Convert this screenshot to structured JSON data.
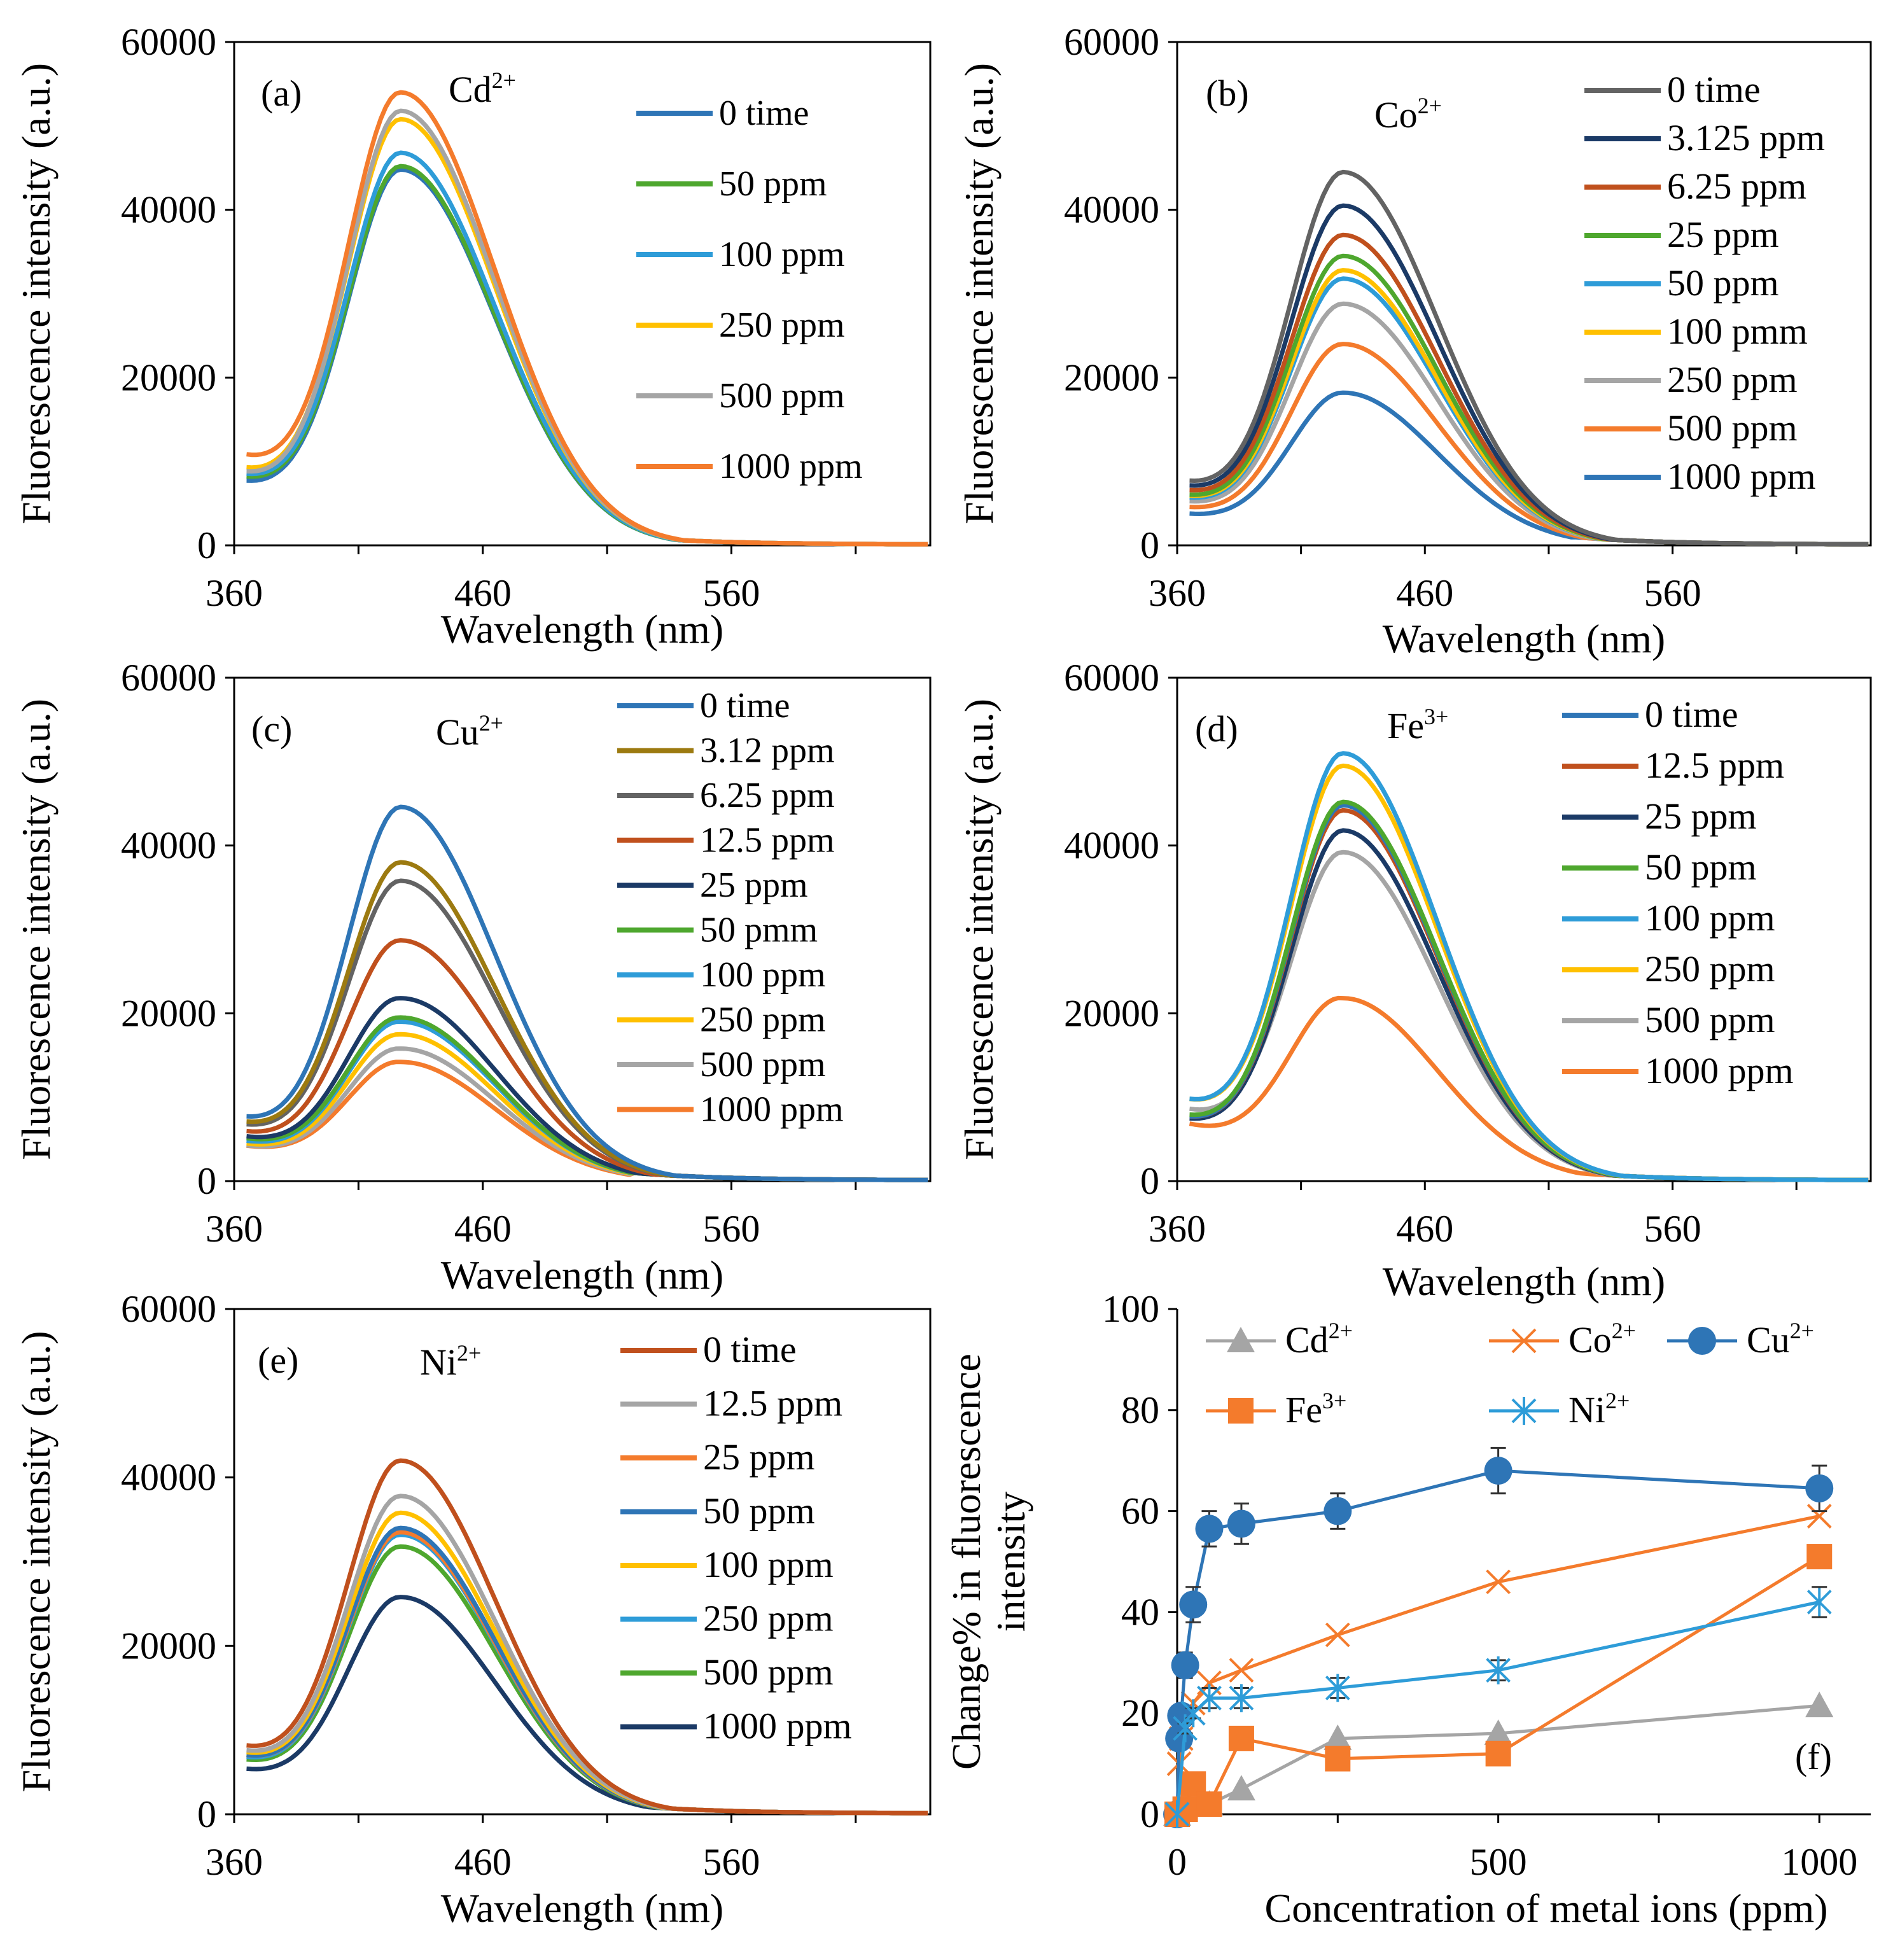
{
  "figure": {
    "x_label": "Wavelength (nm)",
    "y_label": "Fluorescence intensity (a.u.)"
  },
  "colors": {
    "blue": "#2E75B6",
    "green": "#4EA72E",
    "ltblue": "#2E9CD8",
    "yellow": "#FFC000",
    "gray": "#A5A5A5",
    "orange": "#F47B2C",
    "dkgray": "#636363",
    "navy": "#1B3A66",
    "rust": "#C0501D",
    "olive": "#9C7A10"
  },
  "chart_data": [
    {
      "type": "line",
      "panel": "(a)",
      "ion": "Cd",
      "ion_sup": "2+",
      "xlabel": "Wavelength (nm)",
      "ylabel": "Fluorescence intensity (a.u.)",
      "xlim": [
        360,
        640
      ],
      "ylim": [
        0,
        60000
      ],
      "xticks": [
        "360",
        "460",
        "560"
      ],
      "yticks": [
        "0",
        "20000",
        "40000",
        "60000"
      ],
      "legend": "top-right",
      "series": [
        {
          "name": "0 time",
          "color": "#2E75B6",
          "peak": 44800,
          "start": 7000,
          "end": 100
        },
        {
          "name": "50 ppm",
          "color": "#4EA72E",
          "peak": 45200,
          "start": 7500,
          "end": 100
        },
        {
          "name": "100 ppm",
          "color": "#2E9CD8",
          "peak": 46800,
          "start": 7800,
          "end": 100
        },
        {
          "name": "250 ppm",
          "color": "#FFC000",
          "peak": 50800,
          "start": 8500,
          "end": 100
        },
        {
          "name": "500 ppm",
          "color": "#A5A5A5",
          "peak": 51800,
          "start": 8000,
          "end": 100
        },
        {
          "name": "1000 ppm",
          "color": "#F47B2C",
          "peak": 54000,
          "start": 10000,
          "end": 100
        }
      ]
    },
    {
      "type": "line",
      "panel": "(b)",
      "ion": "Co",
      "ion_sup": "2+",
      "xlabel": "Wavelength (nm)",
      "ylabel": "Fluorescence intensity (a.u.)",
      "xlim": [
        360,
        640
      ],
      "ylim": [
        0,
        60000
      ],
      "xticks": [
        "360",
        "460",
        "560"
      ],
      "yticks": [
        "0",
        "20000",
        "40000",
        "60000"
      ],
      "legend": "top-right",
      "series": [
        {
          "name": "0 time",
          "color": "#636363",
          "peak": 44500,
          "start": 7000,
          "end": 100
        },
        {
          "name": "3.125 ppm",
          "color": "#1B3A66",
          "peak": 40500,
          "start": 6500,
          "end": 100
        },
        {
          "name": "6.25 ppm",
          "color": "#C0501D",
          "peak": 37000,
          "start": 6000,
          "end": 100
        },
        {
          "name": "25 ppm",
          "color": "#4EA72E",
          "peak": 34500,
          "start": 5500,
          "end": 100
        },
        {
          "name": "50 ppm",
          "color": "#2E9CD8",
          "peak": 31800,
          "start": 5200,
          "end": 100
        },
        {
          "name": "100 pmm",
          "color": "#FFC000",
          "peak": 32800,
          "start": 5400,
          "end": 100
        },
        {
          "name": "250 ppm",
          "color": "#A5A5A5",
          "peak": 28800,
          "start": 4800,
          "end": 100
        },
        {
          "name": "500 ppm",
          "color": "#F47B2C",
          "peak": 24000,
          "start": 4200,
          "end": 100
        },
        {
          "name": "1000 ppm",
          "color": "#2E75B6",
          "peak": 18200,
          "start": 3500,
          "end": 100
        }
      ]
    },
    {
      "type": "line",
      "panel": "(c)",
      "ion": "Cu",
      "ion_sup": "2+",
      "xlabel": "Wavelength (nm)",
      "ylabel": "Fluorescence intensity (a.u.)",
      "xlim": [
        360,
        640
      ],
      "ylim": [
        0,
        60000
      ],
      "xticks": [
        "360",
        "460",
        "560"
      ],
      "yticks": [
        "0",
        "20000",
        "40000",
        "60000"
      ],
      "legend": "top-right",
      "series": [
        {
          "name": "0 time",
          "color": "#2E75B6",
          "peak": 44600,
          "start": 7000,
          "end": 100
        },
        {
          "name": "3.12 ppm",
          "color": "#9C7A10",
          "peak": 38000,
          "start": 6500,
          "end": 100
        },
        {
          "name": "6.25 ppm",
          "color": "#636363",
          "peak": 35800,
          "start": 6200,
          "end": 100
        },
        {
          "name": "12.5 ppm",
          "color": "#C0501D",
          "peak": 28700,
          "start": 5500,
          "end": 100
        },
        {
          "name": "25 ppm",
          "color": "#1B3A66",
          "peak": 21800,
          "start": 5000,
          "end": 100
        },
        {
          "name": "50 pmm",
          "color": "#4EA72E",
          "peak": 19500,
          "start": 4800,
          "end": 100
        },
        {
          "name": "100 ppm",
          "color": "#2E9CD8",
          "peak": 19000,
          "start": 4500,
          "end": 100
        },
        {
          "name": "250 ppm",
          "color": "#FFC000",
          "peak": 17500,
          "start": 4200,
          "end": 100
        },
        {
          "name": "500 ppm",
          "color": "#A5A5A5",
          "peak": 15800,
          "start": 4000,
          "end": 100
        },
        {
          "name": "1000 ppm",
          "color": "#F47B2C",
          "peak": 14200,
          "start": 4000,
          "end": 100
        }
      ]
    },
    {
      "type": "line",
      "panel": "(d)",
      "ion": "Fe",
      "ion_sup": "3+",
      "xlabel": "Wavelength (nm)",
      "ylabel": "Fluorescence intensity (a.u.)",
      "xlim": [
        360,
        640
      ],
      "ylim": [
        0,
        60000
      ],
      "xticks": [
        "360",
        "460",
        "560"
      ],
      "yticks": [
        "0",
        "20000",
        "40000",
        "60000"
      ],
      "legend": "top-right",
      "series": [
        {
          "name": "0 time",
          "color": "#2E75B6",
          "peak": 44800,
          "start": 7000,
          "end": 100
        },
        {
          "name": "12.5 ppm",
          "color": "#C0501D",
          "peak": 44200,
          "start": 7000,
          "end": 100
        },
        {
          "name": "25 ppm",
          "color": "#1B3A66",
          "peak": 41800,
          "start": 6800,
          "end": 100
        },
        {
          "name": "50 ppm",
          "color": "#4EA72E",
          "peak": 45200,
          "start": 7200,
          "end": 100
        },
        {
          "name": "100 ppm",
          "color": "#2E9CD8",
          "peak": 51000,
          "start": 9000,
          "end": 100
        },
        {
          "name": "250 ppm",
          "color": "#FFC000",
          "peak": 49500,
          "start": 9000,
          "end": 100
        },
        {
          "name": "500 ppm",
          "color": "#A5A5A5",
          "peak": 39200,
          "start": 8000,
          "end": 100
        },
        {
          "name": "1000 ppm",
          "color": "#F47B2C",
          "peak": 21800,
          "start": 6500,
          "end": 100
        }
      ]
    },
    {
      "type": "line",
      "panel": "(e)",
      "ion": "Ni",
      "ion_sup": "2+",
      "xlabel": "Wavelength (nm)",
      "ylabel": "Fluorescence intensity (a.u.)",
      "xlim": [
        360,
        640
      ],
      "ylim": [
        0,
        60000
      ],
      "xticks": [
        "360",
        "460",
        "560"
      ],
      "yticks": [
        "0",
        "20000",
        "40000",
        "60000"
      ],
      "legend": "top-right",
      "series": [
        {
          "name": "0 time",
          "color": "#C0501D",
          "peak": 42000,
          "start": 7500,
          "end": 100
        },
        {
          "name": "12.5 ppm",
          "color": "#A5A5A5",
          "peak": 37800,
          "start": 7000,
          "end": 100
        },
        {
          "name": "25 ppm",
          "color": "#F47B2C",
          "peak": 33500,
          "start": 6500,
          "end": 100
        },
        {
          "name": "50 ppm",
          "color": "#2E75B6",
          "peak": 34000,
          "start": 6500,
          "end": 100
        },
        {
          "name": "100 ppm",
          "color": "#FFC000",
          "peak": 35800,
          "start": 6800,
          "end": 100
        },
        {
          "name": "250 ppm",
          "color": "#2E9CD8",
          "peak": 33200,
          "start": 6300,
          "end": 100
        },
        {
          "name": "500 ppm",
          "color": "#4EA72E",
          "peak": 31800,
          "start": 6000,
          "end": 100
        },
        {
          "name": "1000 ppm",
          "color": "#1B3A66",
          "peak": 25800,
          "start": 5000,
          "end": 100
        }
      ]
    },
    {
      "type": "scatter",
      "panel": "(f)",
      "xlabel": "Concentration of metal ions (ppm)",
      "ylabel": "Change% in fluorescence intensity",
      "xlim": [
        0,
        1080
      ],
      "ylim": [
        0,
        100
      ],
      "xticks": [
        "0",
        "500",
        "1000"
      ],
      "yticks": [
        "0",
        "20",
        "40",
        "60",
        "80",
        "100"
      ],
      "legend": "top",
      "series": [
        {
          "name": "Cd",
          "sup": "2+",
          "color": "#A5A5A5",
          "marker": "triangle",
          "x": [
            0,
            50,
            100,
            250,
            500,
            1000
          ],
          "y": [
            0,
            2,
            5,
            15,
            16,
            21.5
          ]
        },
        {
          "name": "Co",
          "sup": "2+",
          "color": "#F47B2C",
          "marker": "x",
          "x": [
            0,
            3.125,
            6.25,
            25,
            50,
            100,
            250,
            500,
            1000
          ],
          "y": [
            0,
            10,
            15,
            22,
            26,
            28.5,
            35.5,
            46,
            59
          ]
        },
        {
          "name": "Cu",
          "sup": "2+",
          "color": "#2E75B6",
          "marker": "circle",
          "x": [
            0,
            3.12,
            6.25,
            12.5,
            25,
            50,
            100,
            250,
            500,
            1000
          ],
          "y": [
            0,
            15,
            19.5,
            29.5,
            41.5,
            56.5,
            57.5,
            60,
            68,
            64.5
          ],
          "err": [
            0,
            2,
            2,
            2.5,
            3.5,
            3.5,
            4,
            3.5,
            4.5,
            4.5
          ]
        },
        {
          "name": "Fe",
          "sup": "3+",
          "color": "#F47B2C",
          "marker": "square",
          "x": [
            0,
            12.5,
            25,
            50,
            100,
            250,
            500,
            1000
          ],
          "y": [
            0,
            1,
            6,
            2,
            15,
            11,
            12,
            51
          ]
        },
        {
          "name": "Ni",
          "sup": "2+",
          "color": "#2E9CD8",
          "marker": "star",
          "x": [
            0,
            12.5,
            25,
            50,
            100,
            250,
            500,
            1000
          ],
          "y": [
            0,
            17,
            20,
            23,
            23,
            25,
            28.5,
            42
          ],
          "err": [
            0,
            1,
            1,
            2,
            2,
            2,
            2,
            3
          ]
        }
      ]
    }
  ]
}
